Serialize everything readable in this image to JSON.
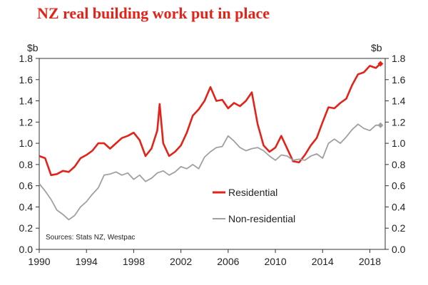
{
  "chart_data": {
    "type": "line",
    "title": "NZ real building work put in place",
    "unit_left": "$b",
    "unit_right": "$b",
    "source": "Sources: Stats NZ, Westpac",
    "ylim": [
      0,
      1.8
    ],
    "y_ticks": [
      "0.0",
      "0.2",
      "0.4",
      "0.6",
      "0.8",
      "1.0",
      "1.2",
      "1.4",
      "1.6",
      "1.8"
    ],
    "xlim": [
      1990,
      2019.3
    ],
    "x_ticks": [
      "1990",
      "1994",
      "1998",
      "2002",
      "2006",
      "2010",
      "2014",
      "2018"
    ],
    "series": [
      {
        "name": "Residential",
        "color": "#e2231a",
        "marker": "diamond",
        "x": [
          1990.0,
          1990.5,
          1991.0,
          1991.5,
          1992.0,
          1992.5,
          1993.0,
          1993.5,
          1994.0,
          1994.5,
          1995.0,
          1995.5,
          1996.0,
          1996.5,
          1997.0,
          1997.5,
          1998.0,
          1998.5,
          1999.0,
          1999.5,
          2000.0,
          2000.2,
          2000.5,
          2001.0,
          2001.5,
          2002.0,
          2002.5,
          2003.0,
          2003.5,
          2004.0,
          2004.5,
          2005.0,
          2005.5,
          2006.0,
          2006.5,
          2007.0,
          2007.5,
          2008.0,
          2008.5,
          2009.0,
          2009.5,
          2010.0,
          2010.5,
          2011.0,
          2011.5,
          2012.0,
          2012.5,
          2013.0,
          2013.5,
          2014.0,
          2014.5,
          2015.0,
          2015.5,
          2016.0,
          2016.5,
          2017.0,
          2017.5,
          2018.0,
          2018.5,
          2018.9
        ],
        "values": [
          0.88,
          0.86,
          0.7,
          0.71,
          0.74,
          0.73,
          0.78,
          0.86,
          0.89,
          0.93,
          1.0,
          1.0,
          0.95,
          1.0,
          1.05,
          1.07,
          1.1,
          1.03,
          0.88,
          0.95,
          1.12,
          1.37,
          1.0,
          0.88,
          0.92,
          0.98,
          1.1,
          1.26,
          1.32,
          1.4,
          1.53,
          1.4,
          1.41,
          1.33,
          1.38,
          1.35,
          1.4,
          1.48,
          1.18,
          0.98,
          0.92,
          0.96,
          1.07,
          0.95,
          0.83,
          0.82,
          0.89,
          0.98,
          1.05,
          1.2,
          1.34,
          1.33,
          1.38,
          1.42,
          1.55,
          1.65,
          1.67,
          1.73,
          1.71,
          1.75
        ]
      },
      {
        "name": "Non-residential",
        "color": "#a0a0a0",
        "marker": "diamond",
        "x": [
          1990.0,
          1990.5,
          1991.0,
          1991.5,
          1992.0,
          1992.5,
          1993.0,
          1993.5,
          1994.0,
          1994.5,
          1995.0,
          1995.5,
          1996.0,
          1996.5,
          1997.0,
          1997.5,
          1998.0,
          1998.5,
          1999.0,
          1999.5,
          2000.0,
          2000.5,
          2001.0,
          2001.5,
          2002.0,
          2002.5,
          2003.0,
          2003.5,
          2004.0,
          2004.5,
          2005.0,
          2005.5,
          2006.0,
          2006.5,
          2007.0,
          2007.5,
          2008.0,
          2008.5,
          2009.0,
          2009.5,
          2010.0,
          2010.5,
          2011.0,
          2011.5,
          2012.0,
          2012.5,
          2013.0,
          2013.5,
          2014.0,
          2014.5,
          2015.0,
          2015.5,
          2016.0,
          2016.5,
          2017.0,
          2017.5,
          2018.0,
          2018.5,
          2018.9
        ],
        "values": [
          0.62,
          0.55,
          0.47,
          0.37,
          0.33,
          0.28,
          0.32,
          0.4,
          0.45,
          0.52,
          0.58,
          0.7,
          0.71,
          0.73,
          0.7,
          0.72,
          0.66,
          0.7,
          0.64,
          0.67,
          0.72,
          0.74,
          0.7,
          0.73,
          0.78,
          0.76,
          0.8,
          0.76,
          0.87,
          0.92,
          0.96,
          0.97,
          1.07,
          1.02,
          0.96,
          0.93,
          0.95,
          0.96,
          0.93,
          0.88,
          0.84,
          0.89,
          0.88,
          0.84,
          0.85,
          0.84,
          0.88,
          0.9,
          0.86,
          1.0,
          1.04,
          1.0,
          1.06,
          1.13,
          1.18,
          1.14,
          1.12,
          1.17,
          1.17
        ]
      }
    ]
  }
}
